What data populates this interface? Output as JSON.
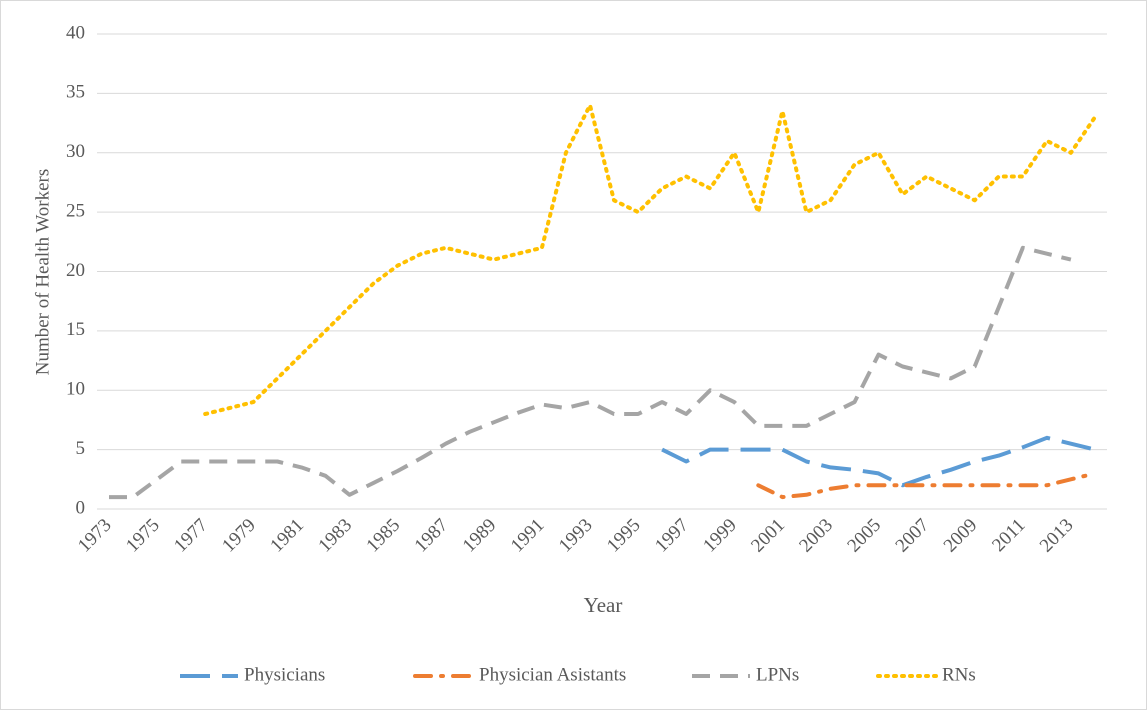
{
  "chart_data": {
    "type": "line",
    "xlabel": "Year",
    "ylabel": "Number of Health Workers",
    "categories": [
      "1973",
      null,
      "1975",
      null,
      "1977",
      null,
      "1979",
      null,
      "1981",
      null,
      "1983",
      null,
      "1985",
      null,
      "1987",
      null,
      "1989",
      null,
      "1991",
      null,
      "1993",
      null,
      "1995",
      null,
      "1997",
      null,
      "1999",
      null,
      "2001",
      null,
      "2003",
      null,
      "2005",
      null,
      "2007",
      null,
      "2009",
      null,
      "2011",
      null,
      "2013",
      null
    ],
    "series": [
      {
        "name": "Physicians",
        "color": "#5b9bd5",
        "dash": "long-dash",
        "values": [
          null,
          null,
          null,
          null,
          null,
          null,
          null,
          null,
          null,
          null,
          null,
          null,
          null,
          null,
          null,
          null,
          null,
          null,
          null,
          null,
          null,
          null,
          null,
          5,
          4,
          5,
          5,
          5,
          5,
          4,
          3.5,
          3.3,
          3,
          2,
          2.7,
          3.3,
          4,
          4.5,
          5.2,
          6,
          5.5,
          5
        ]
      },
      {
        "name": "Physician Asistants",
        "color": "#ed7d31",
        "dash": "dash-dot",
        "values": [
          null,
          null,
          null,
          null,
          null,
          null,
          null,
          null,
          null,
          null,
          null,
          null,
          null,
          null,
          null,
          null,
          null,
          null,
          null,
          null,
          null,
          null,
          null,
          null,
          null,
          null,
          null,
          2,
          1,
          1.2,
          1.7,
          2,
          2,
          2,
          2,
          2,
          2,
          2,
          2,
          2,
          2.5,
          3
        ]
      },
      {
        "name": "LPNs",
        "color": "#a5a5a5",
        "dash": "dash",
        "values": [
          1,
          1,
          2.5,
          4,
          4,
          4,
          4,
          4,
          3.5,
          2.8,
          1.2,
          2.2,
          3.2,
          4.3,
          5.5,
          6.5,
          7.3,
          8.1,
          8.8,
          8.5,
          9,
          8,
          8,
          9,
          8,
          10,
          9,
          7,
          7,
          7,
          8,
          9,
          13,
          12,
          11.5,
          11,
          12,
          17,
          22,
          21.5,
          21,
          null
        ]
      },
      {
        "name": "RNs",
        "color": "#ffc000",
        "dash": "dot",
        "values": [
          null,
          null,
          null,
          null,
          8,
          8.5,
          9,
          11,
          13,
          15,
          17,
          19,
          20.5,
          21.5,
          22,
          21.5,
          21,
          21.5,
          22,
          30,
          34,
          26,
          25,
          27,
          28,
          27,
          30,
          25,
          33.5,
          25,
          26,
          29,
          30,
          26.5,
          28,
          27,
          26,
          28,
          28,
          31,
          30,
          33
        ]
      }
    ],
    "ylim": [
      0,
      40
    ],
    "yticks": [
      0,
      5,
      10,
      15,
      20,
      25,
      30,
      35,
      40
    ],
    "grid": true,
    "legend": "bottom"
  }
}
